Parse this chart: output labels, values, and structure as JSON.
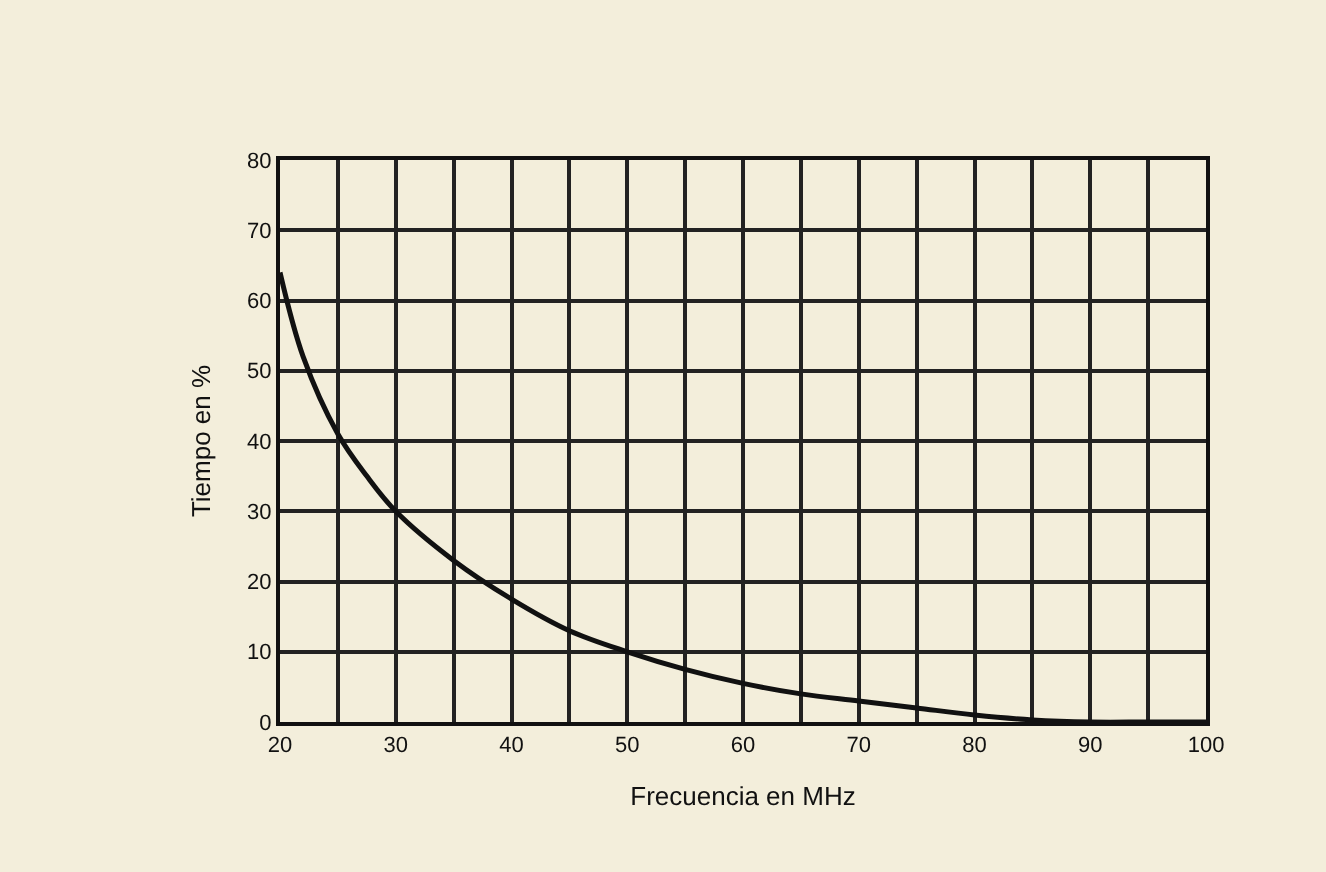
{
  "chart_data": {
    "type": "line",
    "xlabel": "Frecuencia en MHz",
    "ylabel": "Tiempo en %",
    "x": [
      20,
      22,
      25,
      27.5,
      30,
      35,
      40,
      45,
      50,
      55,
      60,
      65,
      70,
      75,
      80,
      85,
      90,
      95,
      100
    ],
    "series": [
      {
        "color": "#111111",
        "values": [
          64,
          52,
          41,
          35,
          30,
          23,
          17.5,
          13,
          10,
          7.5,
          5.5,
          4,
          3,
          2,
          1,
          0.3,
          0,
          0,
          0
        ]
      }
    ],
    "xlim": [
      20,
      100
    ],
    "ylim": [
      0,
      80
    ],
    "xticks": [
      20,
      {
        "value": 25,
        "label": null
      },
      30,
      {
        "value": 35,
        "label": null
      },
      40,
      {
        "value": 45,
        "label": null
      },
      50,
      {
        "value": 55,
        "label": null
      },
      60,
      {
        "value": 65,
        "label": null
      },
      70,
      {
        "value": 75,
        "label": null
      },
      80,
      {
        "value": 85,
        "label": null
      },
      90,
      {
        "value": 95,
        "label": null
      },
      100
    ],
    "yticks": [
      0,
      10,
      20,
      30,
      40,
      50,
      60,
      70,
      80
    ],
    "grid": true,
    "marker": "none",
    "line_style": "solid"
  }
}
